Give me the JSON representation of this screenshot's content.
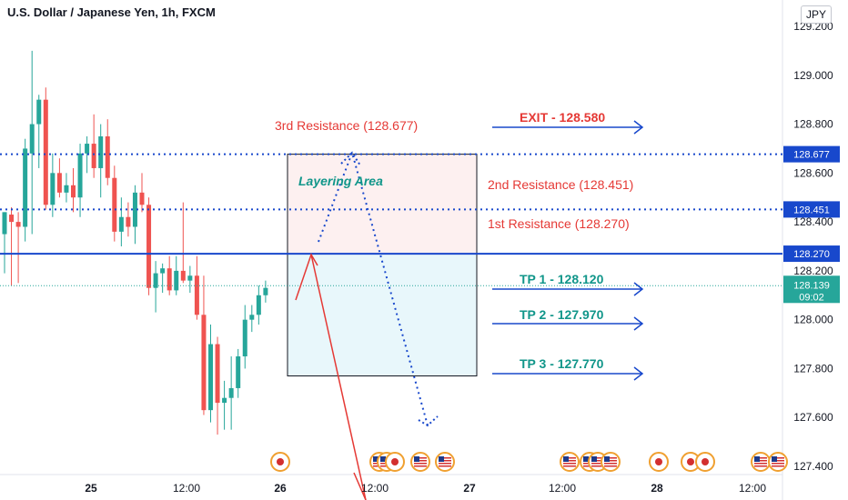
{
  "chart_title": "U.S. Dollar / Japanese Yen, 1h, FXCM",
  "currency_button": "JPY",
  "colors": {
    "up": "#26a69a",
    "down": "#ef5350",
    "blue": "#1848cc",
    "red_text": "#e53935",
    "teal_text": "#11968a",
    "zone_top_fill": "#fdf0f0",
    "zone_bottom_fill": "#e8f7fb",
    "current_price_bg": "#26a69a",
    "level_bg": "#1848cc"
  },
  "chart_data": {
    "type": "candlestick",
    "title": "U.S. Dollar / Japanese Yen, 1h, FXCM",
    "y_ticks": [
      "129.200",
      "129.000",
      "128.800",
      "128.600",
      "128.400",
      "128.200",
      "128.000",
      "127.800",
      "127.600",
      "127.400"
    ],
    "ylim": [
      127.37,
      129.22
    ],
    "x_ticks": [
      "25",
      "12:00",
      "26",
      "12:00",
      "27",
      "12:00",
      "28",
      "12:00"
    ],
    "candles": [
      {
        "o": 128.35,
        "h": 128.44,
        "l": 128.19,
        "c": 128.44
      },
      {
        "o": 128.43,
        "h": 128.46,
        "l": 128.14,
        "c": 128.4
      },
      {
        "o": 128.4,
        "h": 128.44,
        "l": 128.15,
        "c": 128.38
      },
      {
        "o": 128.38,
        "h": 128.74,
        "l": 128.32,
        "c": 128.7
      },
      {
        "o": 128.68,
        "h": 129.1,
        "l": 128.35,
        "c": 128.8
      },
      {
        "o": 128.8,
        "h": 128.92,
        "l": 128.62,
        "c": 128.9
      },
      {
        "o": 128.9,
        "h": 128.95,
        "l": 128.45,
        "c": 128.47
      },
      {
        "o": 128.47,
        "h": 128.68,
        "l": 128.42,
        "c": 128.6
      },
      {
        "o": 128.6,
        "h": 128.66,
        "l": 128.5,
        "c": 128.52
      },
      {
        "o": 128.52,
        "h": 128.6,
        "l": 128.48,
        "c": 128.55
      },
      {
        "o": 128.55,
        "h": 128.62,
        "l": 128.44,
        "c": 128.5
      },
      {
        "o": 128.5,
        "h": 128.72,
        "l": 128.42,
        "c": 128.68
      },
      {
        "o": 128.68,
        "h": 128.75,
        "l": 128.6,
        "c": 128.72
      },
      {
        "o": 128.72,
        "h": 128.84,
        "l": 128.58,
        "c": 128.62
      },
      {
        "o": 128.62,
        "h": 128.8,
        "l": 128.5,
        "c": 128.75
      },
      {
        "o": 128.75,
        "h": 128.82,
        "l": 128.55,
        "c": 128.58
      },
      {
        "o": 128.58,
        "h": 128.63,
        "l": 128.32,
        "c": 128.36
      },
      {
        "o": 128.36,
        "h": 128.5,
        "l": 128.3,
        "c": 128.42
      },
      {
        "o": 128.42,
        "h": 128.48,
        "l": 128.34,
        "c": 128.38
      },
      {
        "o": 128.38,
        "h": 128.55,
        "l": 128.31,
        "c": 128.52
      },
      {
        "o": 128.52,
        "h": 128.6,
        "l": 128.44,
        "c": 128.47
      },
      {
        "o": 128.47,
        "h": 128.5,
        "l": 128.1,
        "c": 128.13
      },
      {
        "o": 128.13,
        "h": 128.24,
        "l": 128.03,
        "c": 128.19
      },
      {
        "o": 128.19,
        "h": 128.23,
        "l": 128.11,
        "c": 128.21
      },
      {
        "o": 128.21,
        "h": 128.26,
        "l": 128.1,
        "c": 128.12
      },
      {
        "o": 128.12,
        "h": 128.26,
        "l": 128.1,
        "c": 128.2
      },
      {
        "o": 128.2,
        "h": 128.48,
        "l": 128.15,
        "c": 128.16
      },
      {
        "o": 128.16,
        "h": 128.22,
        "l": 128.11,
        "c": 128.18
      },
      {
        "o": 128.18,
        "h": 128.26,
        "l": 128.0,
        "c": 128.02
      },
      {
        "o": 128.02,
        "h": 128.18,
        "l": 127.61,
        "c": 127.63
      },
      {
        "o": 127.63,
        "h": 127.98,
        "l": 127.58,
        "c": 127.9
      },
      {
        "o": 127.9,
        "h": 127.93,
        "l": 127.53,
        "c": 127.66
      },
      {
        "o": 127.66,
        "h": 127.75,
        "l": 127.55,
        "c": 127.68
      },
      {
        "o": 127.68,
        "h": 127.85,
        "l": 127.55,
        "c": 127.72
      },
      {
        "o": 127.72,
        "h": 127.88,
        "l": 127.68,
        "c": 127.85
      },
      {
        "o": 127.85,
        "h": 128.06,
        "l": 127.8,
        "c": 128.0
      },
      {
        "o": 128.0,
        "h": 128.06,
        "l": 127.95,
        "c": 128.02
      },
      {
        "o": 128.02,
        "h": 128.14,
        "l": 127.98,
        "c": 128.1
      },
      {
        "o": 128.1,
        "h": 128.16,
        "l": 128.07,
        "c": 128.13
      }
    ],
    "levels": [
      {
        "label": "128.677",
        "value": 128.677,
        "style": "dotted"
      },
      {
        "label": "128.451",
        "value": 128.451,
        "style": "dotted"
      },
      {
        "label": "128.270",
        "value": 128.27,
        "style": "solid"
      }
    ],
    "current_price": {
      "value": 128.139,
      "label": "128.139",
      "countdown": "09:02"
    }
  },
  "annotations": {
    "third_resistance": "3rd Resistance (128.677)",
    "second_resistance": "2nd Resistance (128.451)",
    "first_resistance": "1st Resistance (128.270)",
    "layering_area": "Layering Area",
    "exit": "EXIT - 128.580",
    "tp1": "TP 1 - 128.120",
    "tp2": "TP 2 - 127.970",
    "tp3": "TP 3 - 127.770"
  },
  "zone": {
    "top": 128.677,
    "mid": 128.27,
    "bottom": 127.77
  }
}
